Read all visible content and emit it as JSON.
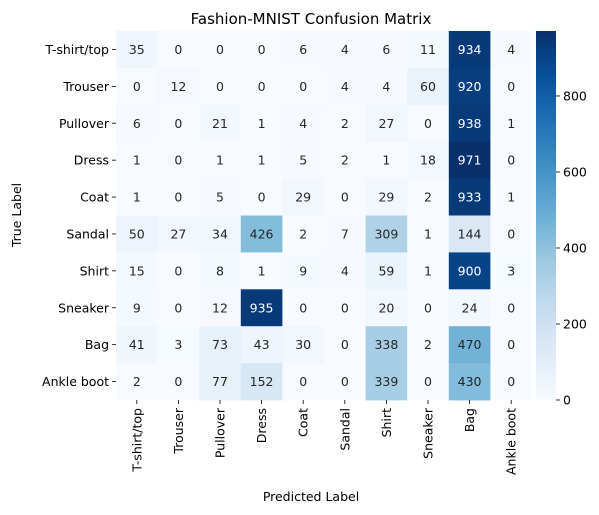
{
  "chart_data": {
    "type": "heatmap",
    "title": "Fashion-MNIST Confusion Matrix",
    "xlabel": "Predicted Label",
    "ylabel": "True Label",
    "x_categories": [
      "T-shirt/top",
      "Trouser",
      "Pullover",
      "Dress",
      "Coat",
      "Sandal",
      "Shirt",
      "Sneaker",
      "Bag",
      "Ankle boot"
    ],
    "y_categories": [
      "T-shirt/top",
      "Trouser",
      "Pullover",
      "Dress",
      "Coat",
      "Sandal",
      "Shirt",
      "Sneaker",
      "Bag",
      "Ankle boot"
    ],
    "values": [
      [
        35,
        0,
        0,
        0,
        6,
        4,
        6,
        11,
        934,
        4
      ],
      [
        0,
        12,
        0,
        0,
        0,
        4,
        4,
        60,
        920,
        0
      ],
      [
        6,
        0,
        21,
        1,
        4,
        2,
        27,
        0,
        938,
        1
      ],
      [
        1,
        0,
        1,
        1,
        5,
        2,
        1,
        18,
        971,
        0
      ],
      [
        1,
        0,
        5,
        0,
        29,
        0,
        29,
        2,
        933,
        1
      ],
      [
        50,
        27,
        34,
        426,
        2,
        7,
        309,
        1,
        144,
        0
      ],
      [
        15,
        0,
        8,
        1,
        9,
        4,
        59,
        1,
        900,
        3
      ],
      [
        9,
        0,
        12,
        935,
        0,
        0,
        20,
        0,
        24,
        0
      ],
      [
        41,
        3,
        73,
        43,
        30,
        0,
        338,
        2,
        470,
        0
      ],
      [
        2,
        0,
        77,
        152,
        0,
        0,
        339,
        0,
        430,
        0
      ]
    ],
    "colormap": "Blues",
    "vmin": 0,
    "vmax": 971,
    "colorbar_ticks": [
      0,
      200,
      400,
      600,
      800
    ],
    "legend_position": "right"
  }
}
